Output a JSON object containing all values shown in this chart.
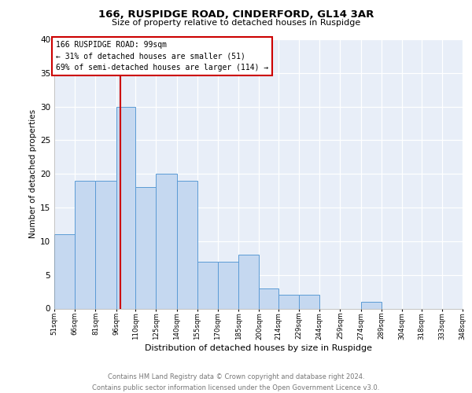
{
  "title1": "166, RUSPIDGE ROAD, CINDERFORD, GL14 3AR",
  "title2": "Size of property relative to detached houses in Ruspidge",
  "xlabel": "Distribution of detached houses by size in Ruspidge",
  "ylabel": "Number of detached properties",
  "bin_edges": [
    51,
    66,
    81,
    96,
    110,
    125,
    140,
    155,
    170,
    185,
    200,
    214,
    229,
    244,
    259,
    274,
    289,
    304,
    318,
    333,
    348
  ],
  "counts": [
    11,
    19,
    19,
    30,
    18,
    20,
    19,
    7,
    7,
    8,
    3,
    2,
    2,
    0,
    0,
    1,
    0,
    0,
    0,
    0
  ],
  "bar_color": "#c5d8f0",
  "bar_edge_color": "#5b9bd5",
  "ref_line_x": 99,
  "ref_line_color": "#cc0000",
  "annotation_line1": "166 RUSPIDGE ROAD: 99sqm",
  "annotation_line2": "← 31% of detached houses are smaller (51)",
  "annotation_line3": "69% of semi-detached houses are larger (114) →",
  "annotation_box_color": "#cc0000",
  "ylim": [
    0,
    40
  ],
  "yticks": [
    0,
    5,
    10,
    15,
    20,
    25,
    30,
    35,
    40
  ],
  "bg_color": "#e8eef8",
  "footer1": "Contains HM Land Registry data © Crown copyright and database right 2024.",
  "footer2": "Contains public sector information licensed under the Open Government Licence v3.0."
}
